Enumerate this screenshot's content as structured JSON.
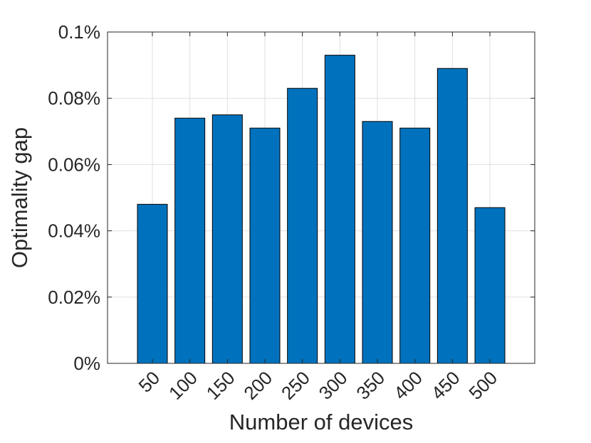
{
  "chart_data": {
    "type": "bar",
    "x_label": "Number of devices",
    "y_label": "Optimality gap",
    "categories": [
      "50",
      "100",
      "150",
      "200",
      "250",
      "300",
      "350",
      "400",
      "450",
      "500"
    ],
    "values": [
      0.048,
      0.074,
      0.075,
      0.071,
      0.083,
      0.093,
      0.073,
      0.071,
      0.089,
      0.047
    ],
    "color": "#0072bd",
    "ylim": [
      0,
      0.1
    ],
    "yticks": [
      {
        "value": 0,
        "label": "0%"
      },
      {
        "value": 0.02,
        "label": "0.02%"
      },
      {
        "value": 0.04,
        "label": "0.04%"
      },
      {
        "value": 0.06,
        "label": "0.06%"
      },
      {
        "value": 0.08,
        "label": "0.08%"
      },
      {
        "value": 0.1,
        "label": "0.1%"
      }
    ],
    "grid": true
  }
}
